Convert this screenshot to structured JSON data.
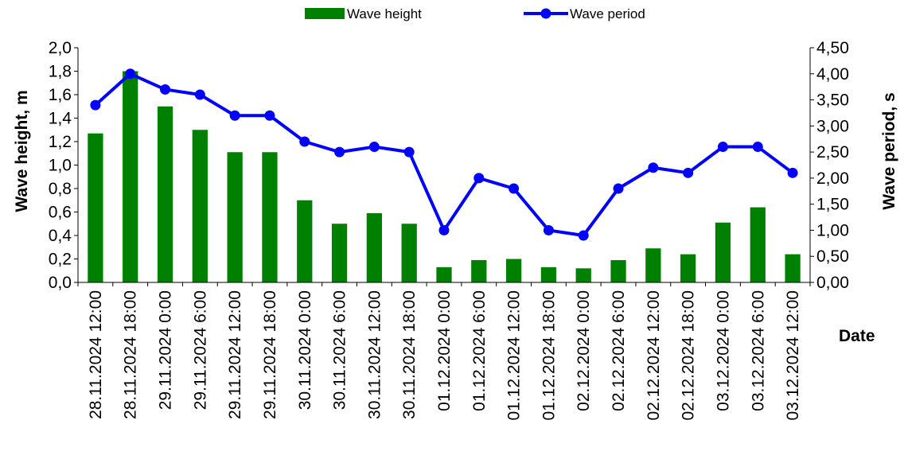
{
  "chart_data": {
    "type": "bar+line",
    "categories": [
      "28.11.2024 12:00",
      "28.11.2024 18:00",
      "29.11.2024 0:00",
      "29.11.2024 6:00",
      "29.11.2024 12:00",
      "29.11.2024 18:00",
      "30.11.2024 0:00",
      "30.11.2024 6:00",
      "30.11.2024 12:00",
      "30.11.2024 18:00",
      "01.12.2024 0:00",
      "01.12.2024 6:00",
      "01.12.2024 12:00",
      "01.12.2024 18:00",
      "02.12.2024 0:00",
      "02.12.2024 6:00",
      "02.12.2024 12:00",
      "02.12.2024 18:00",
      "03.12.2024 0:00",
      "03.12.2024 6:00",
      "03.12.2024 12:00"
    ],
    "series": [
      {
        "name": "Wave height",
        "type": "bar",
        "axis": "left",
        "color": "#008000",
        "values": [
          1.27,
          1.8,
          1.5,
          1.3,
          1.11,
          1.11,
          0.7,
          0.5,
          0.59,
          0.5,
          0.13,
          0.19,
          0.2,
          0.13,
          0.12,
          0.19,
          0.29,
          0.24,
          0.51,
          0.64,
          0.24
        ]
      },
      {
        "name": "Wave period",
        "type": "line",
        "axis": "right",
        "color": "#0000ff",
        "values": [
          3.4,
          4.0,
          3.7,
          3.6,
          3.2,
          3.2,
          2.7,
          2.5,
          2.6,
          2.5,
          1.0,
          2.0,
          1.8,
          1.0,
          0.9,
          1.8,
          2.2,
          2.1,
          2.6,
          2.6,
          2.1
        ]
      }
    ],
    "ylabel": "Wave height, m",
    "y2label": "Wave period, s",
    "xlabel": "Date",
    "ylim": [
      0,
      2.0
    ],
    "y2lim": [
      0,
      4.5
    ],
    "yticks": [
      "0,0",
      "0,2",
      "0,4",
      "0,6",
      "0,8",
      "1,0",
      "1,2",
      "1,4",
      "1,6",
      "1,8",
      "2,0"
    ],
    "y2ticks": [
      "0,00",
      "0,50",
      "1,00",
      "1,50",
      "2,00",
      "2,50",
      "3,00",
      "3,50",
      "4,00",
      "4,50"
    ],
    "grid": false,
    "legend": "top-center"
  }
}
